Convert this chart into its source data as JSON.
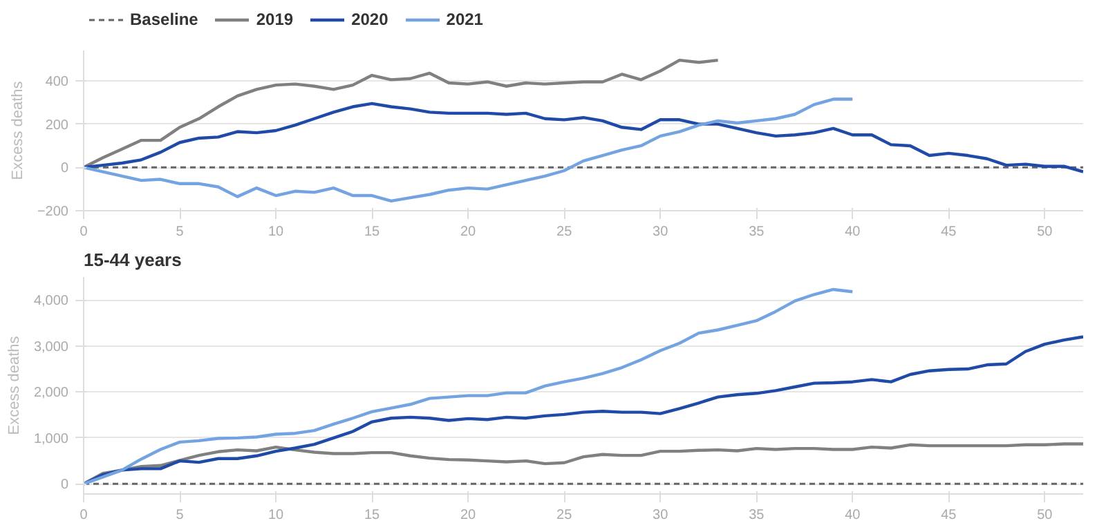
{
  "chart_data": [
    {
      "type": "line",
      "ylabel": "Excess deaths",
      "xlim": [
        0,
        52
      ],
      "ylim": [
        -200,
        540
      ],
      "xticks": [
        0,
        5,
        10,
        15,
        20,
        25,
        30,
        35,
        40,
        45,
        50
      ],
      "yticks": [
        -200,
        0,
        200,
        400
      ],
      "grid": "y",
      "legend": "top left",
      "line_style": "solid",
      "marker": "none",
      "ref_lines": [
        {
          "axis": "y",
          "value": 0,
          "label": "Baseline",
          "color": "#666666",
          "line_style": "dashed"
        }
      ],
      "series": [
        {
          "name": "2019",
          "color": "#808080",
          "x": [
            0,
            1,
            2,
            3,
            4,
            5,
            6,
            7,
            8,
            9,
            10,
            11,
            12,
            13,
            14,
            15,
            16,
            17,
            18,
            19,
            20,
            21,
            22,
            23,
            24,
            25,
            26,
            27,
            28,
            29,
            30,
            31,
            32,
            33
          ],
          "values": [
            0,
            45,
            85,
            125,
            125,
            185,
            225,
            280,
            330,
            360,
            380,
            385,
            375,
            360,
            380,
            425,
            405,
            410,
            435,
            390,
            385,
            395,
            375,
            390,
            385,
            390,
            395,
            395,
            430,
            405,
            445,
            495,
            485,
            495
          ]
        },
        {
          "name": "2020",
          "color": "#1f4aa8",
          "x": [
            0,
            1,
            2,
            3,
            4,
            5,
            6,
            7,
            8,
            9,
            10,
            11,
            12,
            13,
            14,
            15,
            16,
            17,
            18,
            19,
            20,
            21,
            22,
            23,
            24,
            25,
            26,
            27,
            28,
            29,
            30,
            31,
            32,
            33,
            34,
            35,
            36,
            37,
            38,
            39,
            40,
            41,
            42,
            43,
            44,
            45,
            46,
            47,
            48,
            49,
            50,
            51,
            52
          ],
          "values": [
            0,
            10,
            20,
            35,
            70,
            115,
            135,
            140,
            165,
            160,
            170,
            195,
            225,
            255,
            280,
            295,
            280,
            270,
            255,
            250,
            250,
            250,
            245,
            250,
            225,
            220,
            230,
            215,
            185,
            175,
            220,
            220,
            200,
            200,
            180,
            160,
            145,
            150,
            160,
            180,
            150,
            150,
            105,
            100,
            55,
            65,
            55,
            40,
            10,
            15,
            5,
            5,
            -20
          ]
        },
        {
          "name": "2021",
          "color": "#73a3e0",
          "x": [
            0,
            1,
            2,
            3,
            4,
            5,
            6,
            7,
            8,
            9,
            10,
            11,
            12,
            13,
            14,
            15,
            16,
            17,
            18,
            19,
            20,
            21,
            22,
            23,
            24,
            25,
            26,
            27,
            28,
            29,
            30,
            31,
            32,
            33,
            34,
            35,
            36,
            37,
            38,
            39,
            40
          ],
          "values": [
            0,
            -20,
            -40,
            -60,
            -55,
            -75,
            -75,
            -90,
            -135,
            -95,
            -130,
            -110,
            -115,
            -95,
            -130,
            -130,
            -155,
            -140,
            -125,
            -105,
            -95,
            -100,
            -80,
            -60,
            -40,
            -15,
            30,
            55,
            80,
            100,
            145,
            165,
            195,
            215,
            205,
            215,
            225,
            245,
            290,
            315,
            315
          ]
        }
      ]
    },
    {
      "type": "line",
      "title": "15-44 years",
      "ylabel": "Excess deaths",
      "xlim": [
        0,
        52
      ],
      "ylim": [
        -220,
        4500
      ],
      "xticks": [
        0,
        5,
        10,
        15,
        20,
        25,
        30,
        35,
        40,
        45,
        50
      ],
      "yticks": [
        0,
        {
          "value": 1000,
          "label": "1,000"
        },
        {
          "value": 2000,
          "label": "2,000"
        },
        {
          "value": 3000,
          "label": "3,000"
        },
        {
          "value": 4000,
          "label": "4,000"
        }
      ],
      "grid": "y",
      "line_style": "solid",
      "marker": "none",
      "ref_lines": [
        {
          "axis": "y",
          "value": 0,
          "color": "#666666",
          "line_style": "dashed"
        }
      ],
      "series": [
        {
          "color": "#808080",
          "x": [
            0,
            1,
            2,
            3,
            4,
            5,
            6,
            7,
            8,
            9,
            10,
            11,
            12,
            13,
            14,
            15,
            16,
            17,
            18,
            19,
            20,
            21,
            22,
            23,
            24,
            25,
            26,
            27,
            28,
            29,
            30,
            31,
            32,
            33,
            34,
            35,
            36,
            37,
            38,
            39,
            40,
            41,
            42,
            43,
            44,
            45,
            46,
            47,
            48,
            49,
            50,
            51,
            52
          ],
          "values": [
            0,
            230,
            300,
            380,
            400,
            510,
            620,
            700,
            740,
            720,
            800,
            740,
            690,
            660,
            660,
            680,
            680,
            610,
            560,
            530,
            520,
            500,
            480,
            500,
            440,
            460,
            590,
            640,
            620,
            620,
            710,
            710,
            730,
            740,
            720,
            770,
            750,
            770,
            770,
            750,
            750,
            800,
            780,
            850,
            830,
            830,
            830,
            830,
            830,
            850,
            850,
            870,
            870
          ]
        },
        {
          "color": "#1f4aa8",
          "x": [
            0,
            1,
            2,
            3,
            4,
            5,
            6,
            7,
            8,
            9,
            10,
            11,
            12,
            13,
            14,
            15,
            16,
            17,
            18,
            19,
            20,
            21,
            22,
            23,
            24,
            25,
            26,
            27,
            28,
            29,
            30,
            31,
            32,
            33,
            34,
            35,
            36,
            37,
            38,
            39,
            40,
            41,
            42,
            43,
            44,
            45,
            46,
            47,
            48,
            49,
            50,
            51,
            52
          ],
          "values": [
            0,
            200,
            300,
            330,
            330,
            500,
            470,
            550,
            550,
            610,
            710,
            780,
            860,
            1000,
            1140,
            1350,
            1430,
            1450,
            1430,
            1380,
            1420,
            1400,
            1450,
            1430,
            1480,
            1510,
            1560,
            1580,
            1560,
            1560,
            1530,
            1640,
            1760,
            1890,
            1940,
            1970,
            2030,
            2110,
            2190,
            2200,
            2220,
            2270,
            2220,
            2380,
            2460,
            2490,
            2500,
            2590,
            2610,
            2880,
            3040,
            3130,
            3200
          ]
        },
        {
          "color": "#73a3e0",
          "x": [
            0,
            1,
            2,
            3,
            4,
            5,
            6,
            7,
            8,
            9,
            10,
            11,
            12,
            13,
            14,
            15,
            16,
            17,
            18,
            19,
            20,
            21,
            22,
            23,
            24,
            25,
            26,
            27,
            28,
            29,
            30,
            31,
            32,
            33,
            34,
            35,
            36,
            37,
            38,
            39,
            40
          ],
          "values": [
            0,
            150,
            300,
            540,
            750,
            910,
            940,
            990,
            1000,
            1020,
            1080,
            1100,
            1160,
            1300,
            1430,
            1570,
            1650,
            1730,
            1860,
            1890,
            1920,
            1920,
            1980,
            1980,
            2130,
            2220,
            2300,
            2400,
            2530,
            2700,
            2900,
            3060,
            3280,
            3350,
            3450,
            3550,
            3750,
            3980,
            4120,
            4230,
            4180
          ]
        }
      ]
    }
  ]
}
